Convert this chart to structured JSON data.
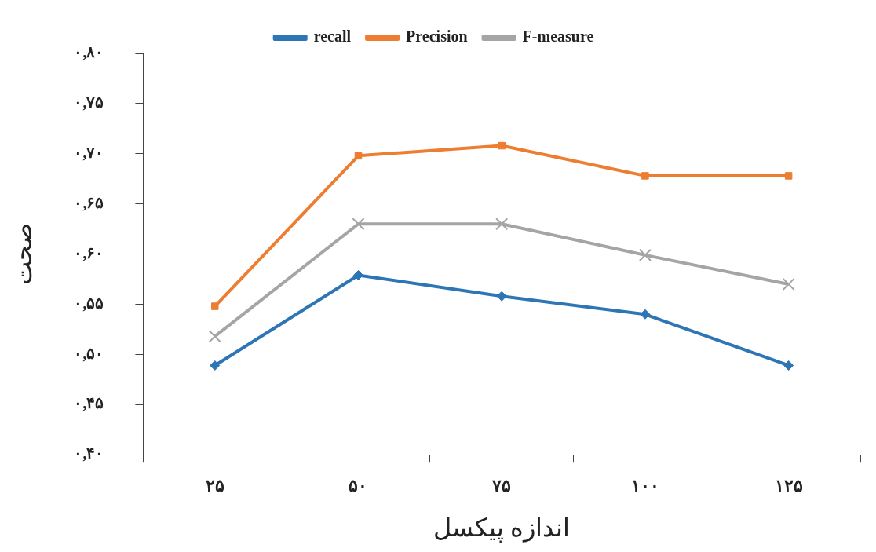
{
  "chart_data": {
    "type": "line",
    "xlabel": "اندازه پیکسل",
    "ylabel": "صحت",
    "categories": [
      "۲۵",
      "۵۰",
      "۷۵",
      "۱۰۰",
      "۱۲۵"
    ],
    "series": [
      {
        "name": "recall",
        "color": "#2e75b6",
        "marker": "diamond",
        "values": [
          0.489,
          0.579,
          0.558,
          0.54,
          0.489
        ]
      },
      {
        "name": "Precision",
        "color": "#ed7d31",
        "marker": "square",
        "values": [
          0.548,
          0.698,
          0.708,
          0.678,
          0.678
        ]
      },
      {
        "name": "F-measure",
        "color": "#a5a5a5",
        "marker": "cross",
        "values": [
          0.518,
          0.63,
          0.63,
          0.599,
          0.57
        ]
      }
    ],
    "ylim": [
      0.4,
      0.8
    ],
    "yticks": [
      {
        "value": 0.4,
        "label": "۰,۴۰"
      },
      {
        "value": 0.45,
        "label": "۰,۴۵"
      },
      {
        "value": 0.5,
        "label": "۰,۵۰"
      },
      {
        "value": 0.55,
        "label": "۰,۵۵"
      },
      {
        "value": 0.6,
        "label": "۰,۶۰"
      },
      {
        "value": 0.65,
        "label": "۰,۶۵"
      },
      {
        "value": 0.7,
        "label": "۰,۷۰"
      },
      {
        "value": 0.75,
        "label": "۰,۷۵"
      },
      {
        "value": 0.8,
        "label": "۰,۸۰"
      }
    ],
    "grid": false,
    "legend": "top",
    "line_style": "solid"
  }
}
